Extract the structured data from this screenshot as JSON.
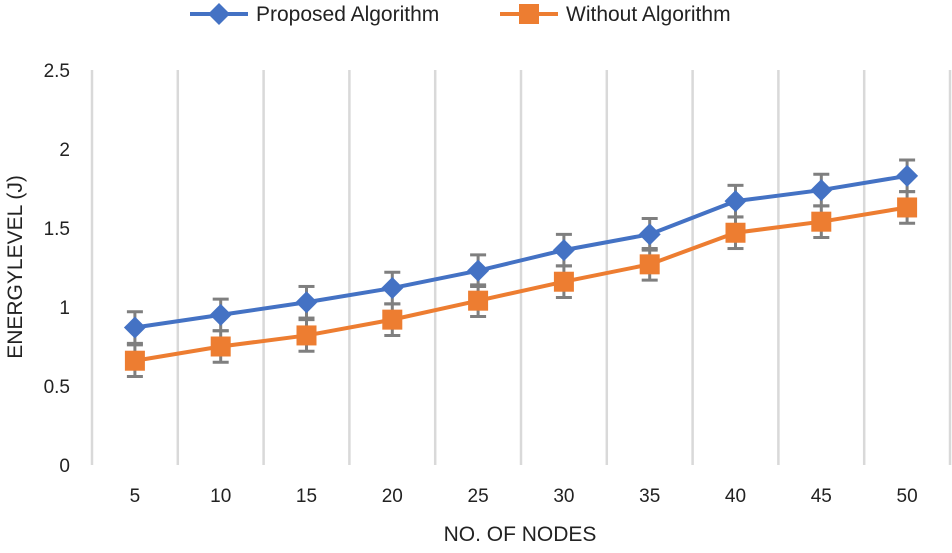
{
  "chart_data": {
    "type": "line",
    "title": "",
    "xlabel": "NO. OF NODES",
    "ylabel": "ENERGYLEVEL (J)",
    "categories": [
      "5",
      "10",
      "15",
      "20",
      "25",
      "30",
      "35",
      "40",
      "45",
      "50"
    ],
    "ylim": [
      0,
      2.5
    ],
    "yticks": [
      "0",
      "0.5",
      "1",
      "1.5",
      "2",
      "2.5"
    ],
    "grid": "vertical",
    "legend_position": "top",
    "error_bars": 0.1,
    "series": [
      {
        "name": "Proposed Algorithm",
        "color": "#4472C4",
        "marker": "diamond",
        "values": [
          0.87,
          0.95,
          1.03,
          1.12,
          1.23,
          1.36,
          1.46,
          1.67,
          1.74,
          1.83
        ]
      },
      {
        "name": "Without Algorithm",
        "color": "#ED7D31",
        "marker": "square",
        "values": [
          0.66,
          0.75,
          0.82,
          0.92,
          1.04,
          1.16,
          1.27,
          1.47,
          1.54,
          1.63
        ]
      }
    ]
  }
}
